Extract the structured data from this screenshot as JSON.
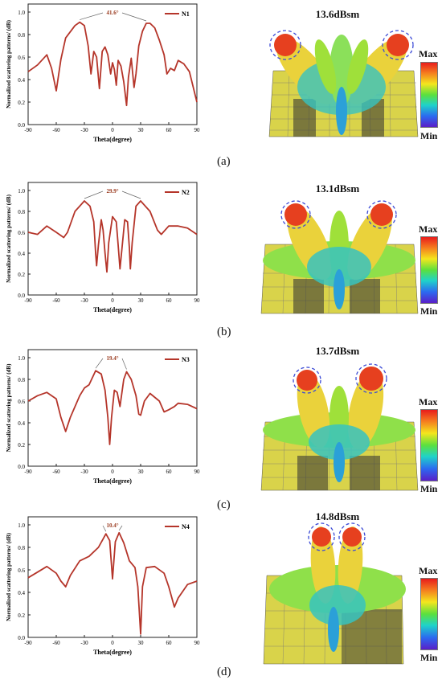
{
  "chart_data": [
    {
      "type": "line",
      "panel_label": "(a)",
      "series": [
        {
          "name": "N1",
          "color": "#b5352a"
        }
      ],
      "xlabel": "Theta(degree)",
      "ylabel": "Normalized scattering patterns/ (dB)",
      "xlim": [
        -90,
        90
      ],
      "ylim": [
        0,
        1.0
      ],
      "xticks": [
        "-90",
        "-60",
        "-30",
        "0",
        "30",
        "60",
        "90"
      ],
      "yticks": [
        "0.0",
        "0.2",
        "0.4",
        "0.6",
        "0.8",
        "1.0"
      ],
      "annotation": "41.6°",
      "points": [
        [
          -90,
          0.47
        ],
        [
          -80,
          0.53
        ],
        [
          -70,
          0.62
        ],
        [
          -65,
          0.5
        ],
        [
          -60,
          0.3
        ],
        [
          -55,
          0.58
        ],
        [
          -50,
          0.77
        ],
        [
          -40,
          0.88
        ],
        [
          -35,
          0.91
        ],
        [
          -30,
          0.88
        ],
        [
          -26,
          0.7
        ],
        [
          -23,
          0.45
        ],
        [
          -20,
          0.65
        ],
        [
          -17,
          0.6
        ],
        [
          -14,
          0.32
        ],
        [
          -11,
          0.65
        ],
        [
          -8,
          0.69
        ],
        [
          -5,
          0.62
        ],
        [
          -2,
          0.45
        ],
        [
          0,
          0.55
        ],
        [
          2,
          0.49
        ],
        [
          4,
          0.35
        ],
        [
          6,
          0.57
        ],
        [
          9,
          0.52
        ],
        [
          12,
          0.38
        ],
        [
          15,
          0.17
        ],
        [
          17,
          0.42
        ],
        [
          20,
          0.59
        ],
        [
          23,
          0.33
        ],
        [
          25,
          0.45
        ],
        [
          28,
          0.7
        ],
        [
          32,
          0.83
        ],
        [
          36,
          0.9
        ],
        [
          40,
          0.9
        ],
        [
          45,
          0.86
        ],
        [
          50,
          0.75
        ],
        [
          55,
          0.62
        ],
        [
          58,
          0.45
        ],
        [
          62,
          0.5
        ],
        [
          66,
          0.48
        ],
        [
          70,
          0.57
        ],
        [
          76,
          0.54
        ],
        [
          82,
          0.47
        ],
        [
          90,
          0.2
        ]
      ]
    },
    {
      "type": "line",
      "panel_label": "(b)",
      "series": [
        {
          "name": "N2",
          "color": "#b5352a"
        }
      ],
      "xlabel": "Theta(degree)",
      "ylabel": "Normalized scattering patterns/ (dB)",
      "xlim": [
        -90,
        90
      ],
      "ylim": [
        0,
        1.0
      ],
      "xticks": [
        "-90",
        "-60",
        "-30",
        "0",
        "30",
        "60",
        "90"
      ],
      "yticks": [
        "0.0",
        "0.2",
        "0.4",
        "0.6",
        "0.8",
        "1.0"
      ],
      "annotation": "29.9°",
      "points": [
        [
          -90,
          0.6
        ],
        [
          -80,
          0.58
        ],
        [
          -70,
          0.66
        ],
        [
          -60,
          0.6
        ],
        [
          -52,
          0.55
        ],
        [
          -48,
          0.6
        ],
        [
          -40,
          0.8
        ],
        [
          -30,
          0.9
        ],
        [
          -24,
          0.85
        ],
        [
          -20,
          0.7
        ],
        [
          -18,
          0.4
        ],
        [
          -17,
          0.28
        ],
        [
          -15,
          0.48
        ],
        [
          -12,
          0.72
        ],
        [
          -10,
          0.62
        ],
        [
          -8,
          0.4
        ],
        [
          -6,
          0.22
        ],
        [
          -4,
          0.5
        ],
        [
          0,
          0.75
        ],
        [
          4,
          0.7
        ],
        [
          6,
          0.48
        ],
        [
          8,
          0.25
        ],
        [
          10,
          0.44
        ],
        [
          13,
          0.72
        ],
        [
          16,
          0.7
        ],
        [
          18,
          0.45
        ],
        [
          19,
          0.25
        ],
        [
          21,
          0.5
        ],
        [
          25,
          0.85
        ],
        [
          30,
          0.9
        ],
        [
          40,
          0.8
        ],
        [
          48,
          0.62
        ],
        [
          52,
          0.58
        ],
        [
          60,
          0.66
        ],
        [
          70,
          0.66
        ],
        [
          80,
          0.64
        ],
        [
          90,
          0.58
        ]
      ]
    },
    {
      "type": "line",
      "panel_label": "(c)",
      "series": [
        {
          "name": "N3",
          "color": "#b5352a"
        }
      ],
      "xlabel": "Theta(degree)",
      "ylabel": "Normalized scattering patterns/ (dB)",
      "xlim": [
        -90,
        90
      ],
      "ylim": [
        0,
        1.0
      ],
      "xticks": [
        "-90",
        "-60",
        "-30",
        "0",
        "30",
        "60",
        "90"
      ],
      "yticks": [
        "0.0",
        "0.2",
        "0.4",
        "0.6",
        "0.8",
        "1.0"
      ],
      "annotation": "19.4°",
      "points": [
        [
          -90,
          0.6
        ],
        [
          -80,
          0.65
        ],
        [
          -70,
          0.68
        ],
        [
          -60,
          0.62
        ],
        [
          -55,
          0.45
        ],
        [
          -50,
          0.32
        ],
        [
          -45,
          0.45
        ],
        [
          -35,
          0.65
        ],
        [
          -30,
          0.72
        ],
        [
          -25,
          0.75
        ],
        [
          -18,
          0.88
        ],
        [
          -12,
          0.85
        ],
        [
          -8,
          0.7
        ],
        [
          -5,
          0.45
        ],
        [
          -3,
          0.2
        ],
        [
          -1,
          0.45
        ],
        [
          2,
          0.7
        ],
        [
          5,
          0.68
        ],
        [
          8,
          0.55
        ],
        [
          12,
          0.8
        ],
        [
          15,
          0.87
        ],
        [
          20,
          0.8
        ],
        [
          25,
          0.65
        ],
        [
          28,
          0.48
        ],
        [
          30,
          0.47
        ],
        [
          34,
          0.6
        ],
        [
          40,
          0.67
        ],
        [
          50,
          0.6
        ],
        [
          55,
          0.5
        ],
        [
          60,
          0.52
        ],
        [
          66,
          0.55
        ],
        [
          70,
          0.58
        ],
        [
          80,
          0.57
        ],
        [
          90,
          0.53
        ]
      ]
    },
    {
      "type": "line",
      "panel_label": "(d)",
      "series": [
        {
          "name": "N4",
          "color": "#b5352a"
        }
      ],
      "xlabel": "Theta(degree)",
      "ylabel": "Normalized scattering patterns/ (dB)",
      "xlim": [
        -90,
        90
      ],
      "ylim": [
        0,
        1.0
      ],
      "xticks": [
        "-90",
        "-60",
        "-30",
        "0",
        "30",
        "60",
        "90"
      ],
      "yticks": [
        "0.0",
        "0.2",
        "0.4",
        "0.6",
        "0.8",
        "1.0"
      ],
      "annotation": "10.4°",
      "points": [
        [
          -90,
          0.53
        ],
        [
          -80,
          0.58
        ],
        [
          -70,
          0.63
        ],
        [
          -60,
          0.57
        ],
        [
          -55,
          0.5
        ],
        [
          -50,
          0.45
        ],
        [
          -45,
          0.55
        ],
        [
          -35,
          0.68
        ],
        [
          -25,
          0.72
        ],
        [
          -15,
          0.8
        ],
        [
          -7,
          0.92
        ],
        [
          -3,
          0.86
        ],
        [
          0,
          0.52
        ],
        [
          3,
          0.85
        ],
        [
          7,
          0.93
        ],
        [
          12,
          0.84
        ],
        [
          18,
          0.68
        ],
        [
          24,
          0.62
        ],
        [
          27,
          0.45
        ],
        [
          30,
          0.03
        ],
        [
          32,
          0.45
        ],
        [
          36,
          0.62
        ],
        [
          45,
          0.63
        ],
        [
          55,
          0.57
        ],
        [
          60,
          0.45
        ],
        [
          66,
          0.27
        ],
        [
          70,
          0.35
        ],
        [
          80,
          0.47
        ],
        [
          90,
          0.5
        ]
      ]
    }
  ],
  "rcs_panels": [
    {
      "title": "13.6dBsm",
      "max_label": "Max",
      "min_label": "Min"
    },
    {
      "title": "13.1dBsm",
      "max_label": "Max",
      "min_label": "Min"
    },
    {
      "title": "13.7dBsm",
      "max_label": "Max",
      "min_label": "Min"
    },
    {
      "title": "14.8dBsm",
      "max_label": "Max",
      "min_label": "Min"
    }
  ]
}
